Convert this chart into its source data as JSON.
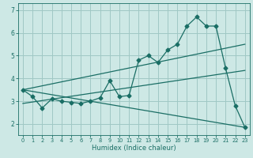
{
  "title": "",
  "xlabel": "Humidex (Indice chaleur)",
  "background_color": "#cde8e5",
  "grid_color": "#a0c8c4",
  "line_color": "#1a6e65",
  "xlim": [
    -0.5,
    23.5
  ],
  "ylim": [
    1.5,
    7.3
  ],
  "yticks": [
    2,
    3,
    4,
    5,
    6,
    7
  ],
  "xticks": [
    0,
    1,
    2,
    3,
    4,
    5,
    6,
    7,
    8,
    9,
    10,
    11,
    12,
    13,
    14,
    15,
    16,
    17,
    18,
    19,
    20,
    21,
    22,
    23
  ],
  "line1_x": [
    0,
    1,
    2,
    3,
    4,
    5,
    6,
    7,
    8,
    9,
    10,
    11,
    12,
    13,
    14,
    15,
    16,
    17,
    18,
    19,
    20,
    21,
    22,
    23
  ],
  "line1_y": [
    3.5,
    3.2,
    2.7,
    3.1,
    3.0,
    2.95,
    2.9,
    3.0,
    3.15,
    3.9,
    3.2,
    3.25,
    4.8,
    5.0,
    4.7,
    5.25,
    5.5,
    6.3,
    6.7,
    6.3,
    6.3,
    4.45,
    2.8,
    1.85
  ],
  "line2_x": [
    0,
    23
  ],
  "line2_y": [
    3.5,
    5.5
  ],
  "line3_x": [
    0,
    23
  ],
  "line3_y": [
    2.9,
    4.35
  ],
  "line4_x": [
    0,
    23
  ],
  "line4_y": [
    3.5,
    1.85
  ],
  "marker": "D",
  "markersize": 2.5,
  "linewidth": 0.9
}
